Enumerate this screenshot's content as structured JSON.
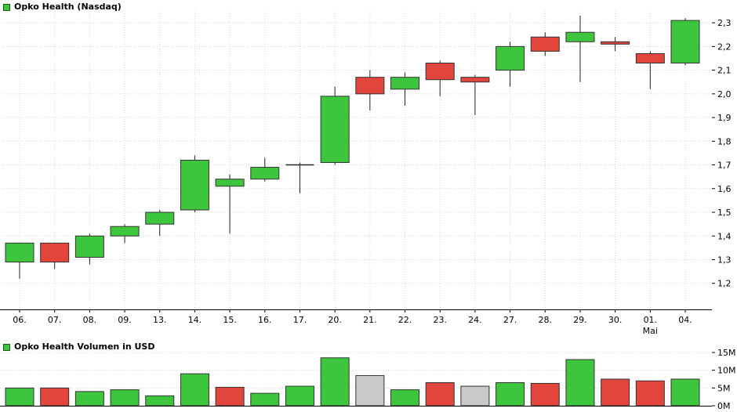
{
  "page": {
    "background": "#ffffff"
  },
  "price_chart": {
    "legend_label": "Opko Health (Nasdaq)"
  },
  "volume_chart": {
    "legend_label": "Opko Health Volumen in USD"
  },
  "colors": {
    "up": "#3dc53d",
    "down": "#e2453c",
    "neutral": "#c9c9c9",
    "border": "#333333",
    "wick": "#222222",
    "grid": "#d8d8d8",
    "axis": "#000000",
    "text": "#000000"
  },
  "chart_data": [
    {
      "type": "candlestick",
      "title": "Opko Health (Nasdaq)",
      "x": [
        "06.",
        "07.",
        "08.",
        "09.",
        "13.",
        "14.",
        "15.",
        "16.",
        "17.",
        "20.",
        "21.",
        "22.",
        "23.",
        "24.",
        "27.",
        "28.",
        "29.",
        "30.",
        "01.",
        "04."
      ],
      "x_secondary": [
        {
          "index": 18,
          "label": "Mai"
        }
      ],
      "ylim": [
        1.09,
        2.35
      ],
      "y_ticks": [
        {
          "v": 2.3,
          "label": "2,3"
        },
        {
          "v": 2.2,
          "label": "2,2"
        },
        {
          "v": 2.1,
          "label": "2,1"
        },
        {
          "v": 2.0,
          "label": "2,0"
        },
        {
          "v": 1.9,
          "label": "1,9"
        },
        {
          "v": 1.8,
          "label": "1,8"
        },
        {
          "v": 1.7,
          "label": "1,7"
        },
        {
          "v": 1.6,
          "label": "1,6"
        },
        {
          "v": 1.5,
          "label": "1,5"
        },
        {
          "v": 1.4,
          "label": "1,4"
        },
        {
          "v": 1.3,
          "label": "1,3"
        },
        {
          "v": 1.2,
          "label": "1,2"
        }
      ],
      "candles": [
        {
          "date": "06.",
          "o": 1.29,
          "h": 1.37,
          "l": 1.22,
          "c": 1.37
        },
        {
          "date": "07.",
          "o": 1.37,
          "h": 1.37,
          "l": 1.26,
          "c": 1.29
        },
        {
          "date": "08.",
          "o": 1.31,
          "h": 1.41,
          "l": 1.28,
          "c": 1.4
        },
        {
          "date": "09.",
          "o": 1.4,
          "h": 1.45,
          "l": 1.37,
          "c": 1.44
        },
        {
          "date": "13.",
          "o": 1.45,
          "h": 1.51,
          "l": 1.4,
          "c": 1.5
        },
        {
          "date": "14.",
          "o": 1.51,
          "h": 1.74,
          "l": 1.5,
          "c": 1.72
        },
        {
          "date": "15.",
          "o": 1.61,
          "h": 1.66,
          "l": 1.41,
          "c": 1.64
        },
        {
          "date": "16.",
          "o": 1.64,
          "h": 1.73,
          "l": 1.63,
          "c": 1.69
        },
        {
          "date": "17.",
          "o": 1.7,
          "h": 1.71,
          "l": 1.58,
          "c": 1.7
        },
        {
          "date": "20.",
          "o": 1.71,
          "h": 2.03,
          "l": 1.7,
          "c": 1.99
        },
        {
          "date": "21.",
          "o": 2.07,
          "h": 2.1,
          "l": 1.93,
          "c": 2.0
        },
        {
          "date": "22.",
          "o": 2.02,
          "h": 2.09,
          "l": 1.95,
          "c": 2.07
        },
        {
          "date": "23.",
          "o": 2.13,
          "h": 2.14,
          "l": 1.99,
          "c": 2.06
        },
        {
          "date": "24.",
          "o": 2.07,
          "h": 2.08,
          "l": 1.91,
          "c": 2.05
        },
        {
          "date": "27.",
          "o": 2.1,
          "h": 2.22,
          "l": 2.03,
          "c": 2.2
        },
        {
          "date": "28.",
          "o": 2.24,
          "h": 2.26,
          "l": 2.16,
          "c": 2.18
        },
        {
          "date": "29.",
          "o": 2.22,
          "h": 2.33,
          "l": 2.05,
          "c": 2.26
        },
        {
          "date": "30.",
          "o": 2.22,
          "h": 2.24,
          "l": 2.18,
          "c": 2.21
        },
        {
          "date": "01.",
          "o": 2.17,
          "h": 2.18,
          "l": 2.02,
          "c": 2.13
        },
        {
          "date": "04.",
          "o": 2.13,
          "h": 2.32,
          "l": 2.12,
          "c": 2.31
        }
      ]
    },
    {
      "type": "bar",
      "title": "Opko Health Volumen in USD",
      "categories": [
        "06.",
        "07.",
        "08.",
        "09.",
        "13.",
        "14.",
        "15.",
        "16.",
        "17.",
        "20.",
        "21.",
        "22.",
        "23.",
        "24.",
        "27.",
        "28.",
        "29.",
        "30.",
        "01.",
        "04."
      ],
      "values": [
        5.0,
        5.0,
        4.0,
        4.5,
        2.8,
        9.0,
        5.2,
        3.5,
        5.5,
        13.5,
        8.5,
        4.5,
        6.5,
        5.5,
        6.5,
        6.3,
        13.0,
        7.5,
        7.0,
        7.5
      ],
      "directions": [
        "up",
        "down",
        "up",
        "up",
        "up",
        "up",
        "down",
        "up",
        "up",
        "up",
        "neutral",
        "up",
        "down",
        "neutral",
        "up",
        "down",
        "up",
        "down",
        "down",
        "up"
      ],
      "unit": "M",
      "ylim": [
        0,
        15.5
      ],
      "y_ticks": [
        {
          "v": 0,
          "label": "0M"
        },
        {
          "v": 5,
          "label": "5M"
        },
        {
          "v": 10,
          "label": "10M"
        },
        {
          "v": 15,
          "label": "15M"
        }
      ]
    }
  ]
}
